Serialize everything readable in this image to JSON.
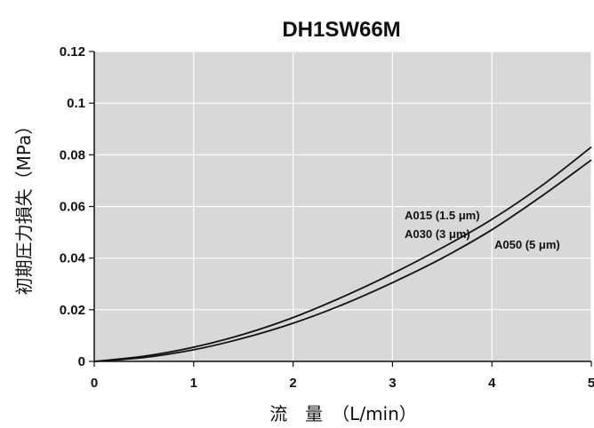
{
  "chart_data": {
    "type": "line",
    "title": "DH1SW66M",
    "xlabel": "流　量　（L/min）",
    "ylabel": "初期圧力損失（MPa）",
    "xlim": [
      0,
      5
    ],
    "ylim": [
      0,
      0.12
    ],
    "x_ticks": [
      "0",
      "1",
      "2",
      "3",
      "4",
      "5"
    ],
    "y_ticks": [
      "0",
      "0.02",
      "0.04",
      "0.06",
      "0.08",
      "0.1",
      "0.12"
    ],
    "grid": true,
    "background": "#d8d8d8",
    "line_color": "#111111",
    "series": [
      {
        "name": "A015 (1.5 μm) / A030 (3 μm)",
        "x": [
          0,
          0.5,
          1,
          1.5,
          2,
          2.5,
          3,
          3.5,
          4,
          4.5,
          5
        ],
        "y": [
          0,
          0.002,
          0.0055,
          0.0105,
          0.017,
          0.025,
          0.034,
          0.044,
          0.055,
          0.068,
          0.083
        ]
      },
      {
        "name": "A050 (5 μm)",
        "x": [
          0,
          0.5,
          1,
          1.5,
          2,
          2.5,
          3,
          3.5,
          4,
          4.5,
          5
        ],
        "y": [
          0,
          0.0015,
          0.0045,
          0.009,
          0.0148,
          0.022,
          0.0305,
          0.04,
          0.051,
          0.064,
          0.078
        ]
      }
    ],
    "annotations": [
      "A015 (1.5 μm)",
      "A030 (3 μm)",
      "A050 (5 μm)"
    ]
  }
}
